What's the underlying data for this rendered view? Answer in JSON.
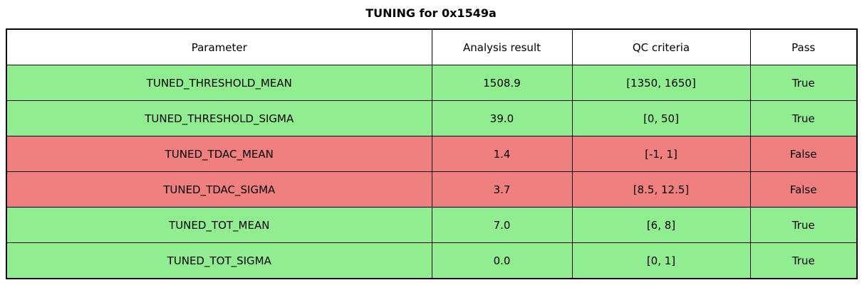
{
  "title": "TUNING for 0x1549a",
  "colors": {
    "pass_row": "#90ee90",
    "fail_row": "#f08080",
    "header_bg": "#ffffff",
    "border": "#000000",
    "text": "#000000"
  },
  "table": {
    "columns": [
      "Parameter",
      "Analysis result",
      "QC criteria",
      "Pass"
    ],
    "rows": [
      {
        "parameter": "TUNED_THRESHOLD_MEAN",
        "result": "1508.9",
        "criteria": "[1350, 1650]",
        "pass": "True"
      },
      {
        "parameter": "TUNED_THRESHOLD_SIGMA",
        "result": "39.0",
        "criteria": "[0, 50]",
        "pass": "True"
      },
      {
        "parameter": "TUNED_TDAC_MEAN",
        "result": "1.4",
        "criteria": "[-1, 1]",
        "pass": "False"
      },
      {
        "parameter": "TUNED_TDAC_SIGMA",
        "result": "3.7",
        "criteria": "[8.5, 12.5]",
        "pass": "False"
      },
      {
        "parameter": "TUNED_TOT_MEAN",
        "result": "7.0",
        "criteria": "[6, 8]",
        "pass": "True"
      },
      {
        "parameter": "TUNED_TOT_SIGMA",
        "result": "0.0",
        "criteria": "[0, 1]",
        "pass": "True"
      }
    ]
  },
  "chart_data": {
    "type": "table",
    "title": "TUNING for 0x1549a",
    "columns": [
      "Parameter",
      "Analysis result",
      "QC criteria",
      "Pass"
    ],
    "rows": [
      [
        "TUNED_THRESHOLD_MEAN",
        "1508.9",
        "[1350, 1650]",
        "True"
      ],
      [
        "TUNED_THRESHOLD_SIGMA",
        "39.0",
        "[0, 50]",
        "True"
      ],
      [
        "TUNED_TDAC_MEAN",
        "1.4",
        "[-1, 1]",
        "False"
      ],
      [
        "TUNED_TDAC_SIGMA",
        "3.7",
        "[8.5, 12.5]",
        "False"
      ],
      [
        "TUNED_TOT_MEAN",
        "7.0",
        "[6, 8]",
        "True"
      ],
      [
        "TUNED_TOT_SIGMA",
        "0.0",
        "[0, 1]",
        "True"
      ]
    ],
    "row_colors": [
      "pass",
      "pass",
      "fail",
      "fail",
      "pass",
      "pass"
    ]
  }
}
